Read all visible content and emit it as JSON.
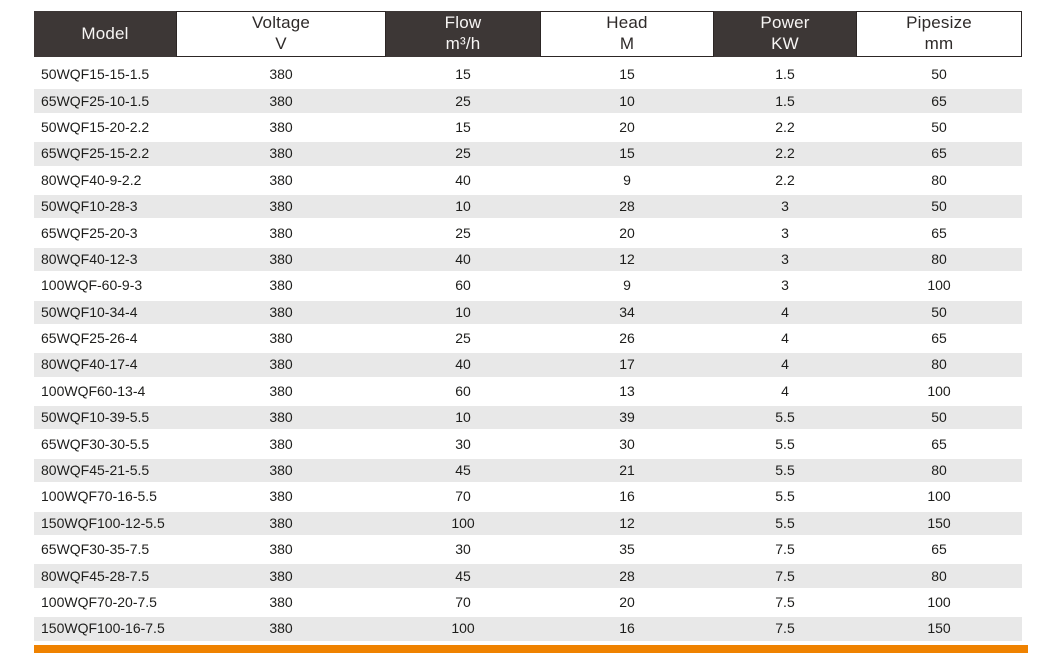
{
  "table": {
    "columns": [
      {
        "label": "Model",
        "unit": "",
        "style": "dark"
      },
      {
        "label": "Voltage",
        "unit": "V",
        "style": "light"
      },
      {
        "label": "Flow",
        "unit": "m³/h",
        "style": "dark"
      },
      {
        "label": "Head",
        "unit": "M",
        "style": "light"
      },
      {
        "label": "Power",
        "unit": "KW",
        "style": "dark"
      },
      {
        "label": "Pipesize",
        "unit": "mm",
        "style": "light"
      }
    ],
    "rows": [
      [
        "50WQF15-15-1.5",
        "380",
        "15",
        "15",
        "1.5",
        "50"
      ],
      [
        "65WQF25-10-1.5",
        "380",
        "25",
        "10",
        "1.5",
        "65"
      ],
      [
        "50WQF15-20-2.2",
        "380",
        "15",
        "20",
        "2.2",
        "50"
      ],
      [
        "65WQF25-15-2.2",
        "380",
        "25",
        "15",
        "2.2",
        "65"
      ],
      [
        "80WQF40-9-2.2",
        "380",
        "40",
        "9",
        "2.2",
        "80"
      ],
      [
        "50WQF10-28-3",
        "380",
        "10",
        "28",
        "3",
        "50"
      ],
      [
        "65WQF25-20-3",
        "380",
        "25",
        "20",
        "3",
        "65"
      ],
      [
        "80WQF40-12-3",
        "380",
        "40",
        "12",
        "3",
        "80"
      ],
      [
        "100WQF-60-9-3",
        "380",
        "60",
        "9",
        "3",
        "100"
      ],
      [
        "50WQF10-34-4",
        "380",
        "10",
        "34",
        "4",
        "50"
      ],
      [
        "65WQF25-26-4",
        "380",
        "25",
        "26",
        "4",
        "65"
      ],
      [
        "80WQF40-17-4",
        "380",
        "40",
        "17",
        "4",
        "80"
      ],
      [
        "100WQF60-13-4",
        "380",
        "60",
        "13",
        "4",
        "100"
      ],
      [
        "50WQF10-39-5.5",
        "380",
        "10",
        "39",
        "5.5",
        "50"
      ],
      [
        "65WQF30-30-5.5",
        "380",
        "30",
        "30",
        "5.5",
        "65"
      ],
      [
        "80WQF45-21-5.5",
        "380",
        "45",
        "21",
        "5.5",
        "80"
      ],
      [
        "100WQF70-16-5.5",
        "380",
        "70",
        "16",
        "5.5",
        "100"
      ],
      [
        "150WQF100-12-5.5",
        "380",
        "100",
        "12",
        "5.5",
        "150"
      ],
      [
        "65WQF30-35-7.5",
        "380",
        "30",
        "35",
        "7.5",
        "65"
      ],
      [
        "80WQF45-28-7.5",
        "380",
        "45",
        "28",
        "7.5",
        "80"
      ],
      [
        "100WQF70-20-7.5",
        "380",
        "70",
        "20",
        "7.5",
        "100"
      ],
      [
        "150WQF100-16-7.5",
        "380",
        "100",
        "16",
        "7.5",
        "150"
      ]
    ]
  },
  "colors": {
    "header_dark_bg": "#3d3736",
    "header_light_bg": "#ffffff",
    "row_stripe": "#e8e8e8",
    "accent_bar": "#ef8200",
    "text": "#1d1d1b"
  }
}
